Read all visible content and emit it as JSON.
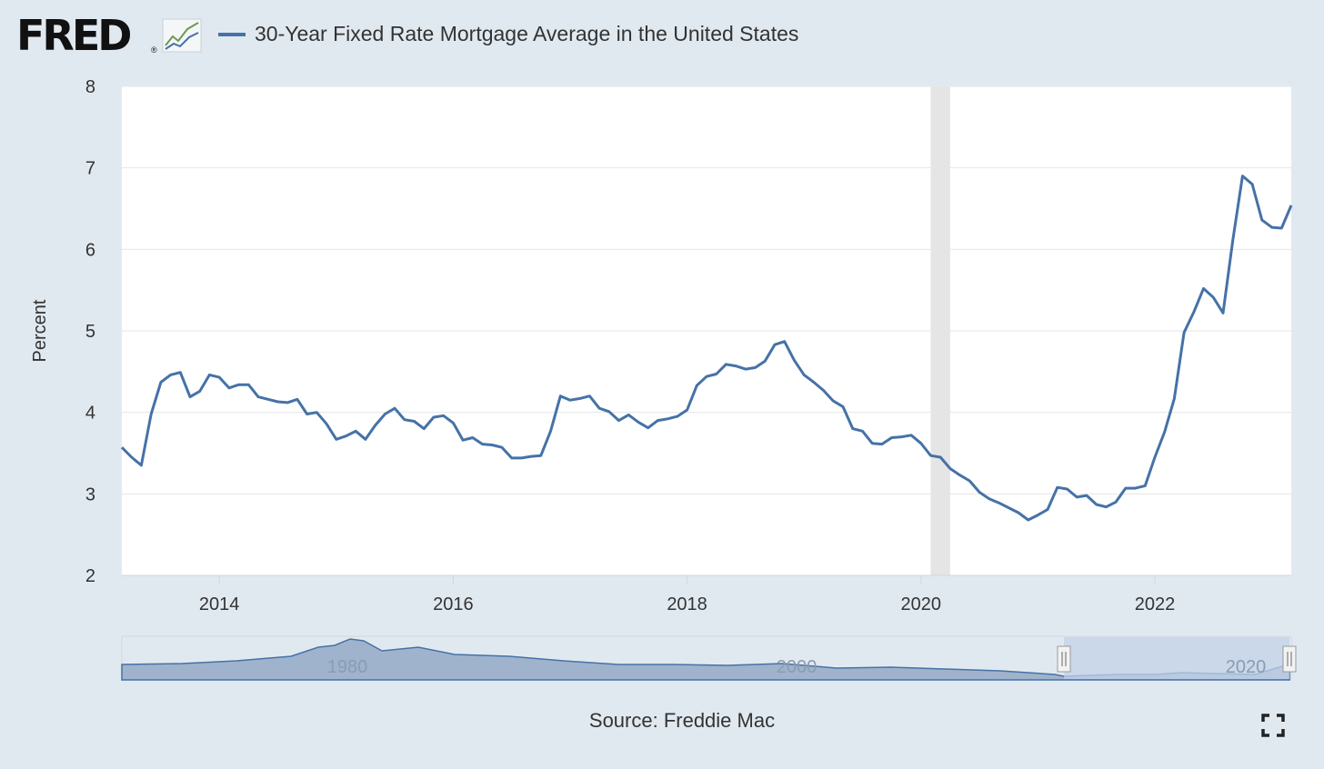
{
  "header": {
    "logo_text": "FRED",
    "logo_mark": "®",
    "title": "30-Year Fixed Rate Mortgage Average in the United States"
  },
  "source": "Source: Freddie Mac",
  "icons": {
    "logo_graph": "line-chart-icon",
    "fullscreen": "fullscreen-icon"
  },
  "colors": {
    "series": "#4572a7",
    "recession": "#e5e5e5",
    "navigator_fill": "#9fb3cc",
    "navigator_selection": "#c2d1e8",
    "background": "#e1e9f0",
    "plot_bg": "#ffffff",
    "grid": "#e6e6e6"
  },
  "chart_data": {
    "type": "line",
    "title": "30-Year Fixed Rate Mortgage Average in the United States",
    "ylabel": "Percent",
    "xlabel": "",
    "xlim": [
      "2013-03",
      "2023-03"
    ],
    "ylim": [
      2,
      8
    ],
    "y_ticks": [
      "2",
      "3",
      "4",
      "5",
      "6",
      "7",
      "8"
    ],
    "x_ticks": [
      "2014",
      "2016",
      "2018",
      "2020",
      "2022"
    ],
    "grid": true,
    "recession_band": [
      "2020-02",
      "2020-04"
    ],
    "series": [
      {
        "name": "30-Year Fixed Rate Mortgage Average in the United States",
        "x": [
          "2013-03",
          "2013-04",
          "2013-05",
          "2013-06",
          "2013-07",
          "2013-08",
          "2013-09",
          "2013-10",
          "2013-11",
          "2013-12",
          "2014-01",
          "2014-02",
          "2014-03",
          "2014-04",
          "2014-05",
          "2014-06",
          "2014-07",
          "2014-08",
          "2014-09",
          "2014-10",
          "2014-11",
          "2014-12",
          "2015-01",
          "2015-02",
          "2015-03",
          "2015-04",
          "2015-05",
          "2015-06",
          "2015-07",
          "2015-08",
          "2015-09",
          "2015-10",
          "2015-11",
          "2015-12",
          "2016-01",
          "2016-02",
          "2016-03",
          "2016-04",
          "2016-05",
          "2016-06",
          "2016-07",
          "2016-08",
          "2016-09",
          "2016-10",
          "2016-11",
          "2016-12",
          "2017-01",
          "2017-02",
          "2017-03",
          "2017-04",
          "2017-05",
          "2017-06",
          "2017-07",
          "2017-08",
          "2017-09",
          "2017-10",
          "2017-11",
          "2017-12",
          "2018-01",
          "2018-02",
          "2018-03",
          "2018-04",
          "2018-05",
          "2018-06",
          "2018-07",
          "2018-08",
          "2018-09",
          "2018-10",
          "2018-11",
          "2018-12",
          "2019-01",
          "2019-02",
          "2019-03",
          "2019-04",
          "2019-05",
          "2019-06",
          "2019-07",
          "2019-08",
          "2019-09",
          "2019-10",
          "2019-11",
          "2019-12",
          "2020-01",
          "2020-02",
          "2020-03",
          "2020-04",
          "2020-05",
          "2020-06",
          "2020-07",
          "2020-08",
          "2020-09",
          "2020-10",
          "2020-11",
          "2020-12",
          "2021-01",
          "2021-02",
          "2021-03",
          "2021-04",
          "2021-05",
          "2021-06",
          "2021-07",
          "2021-08",
          "2021-09",
          "2021-10",
          "2021-11",
          "2021-12",
          "2022-01",
          "2022-02",
          "2022-03",
          "2022-04",
          "2022-05",
          "2022-06",
          "2022-07",
          "2022-08",
          "2022-09",
          "2022-10",
          "2022-11",
          "2022-12",
          "2023-01",
          "2023-02",
          "2023-03"
        ],
        "values": [
          3.57,
          3.45,
          3.35,
          3.98,
          4.37,
          4.46,
          4.49,
          4.19,
          4.26,
          4.46,
          4.43,
          4.3,
          4.34,
          4.34,
          4.19,
          4.16,
          4.13,
          4.12,
          4.16,
          3.98,
          4.0,
          3.86,
          3.67,
          3.71,
          3.77,
          3.67,
          3.84,
          3.98,
          4.05,
          3.91,
          3.89,
          3.8,
          3.94,
          3.96,
          3.87,
          3.66,
          3.69,
          3.61,
          3.6,
          3.57,
          3.44,
          3.44,
          3.46,
          3.47,
          3.77,
          4.2,
          4.15,
          4.17,
          4.2,
          4.05,
          4.01,
          3.9,
          3.97,
          3.88,
          3.81,
          3.9,
          3.92,
          3.95,
          4.03,
          4.33,
          4.44,
          4.47,
          4.59,
          4.57,
          4.53,
          4.55,
          4.63,
          4.83,
          4.87,
          4.64,
          4.46,
          4.37,
          4.27,
          4.14,
          4.07,
          3.8,
          3.77,
          3.62,
          3.61,
          3.69,
          3.7,
          3.72,
          3.62,
          3.47,
          3.45,
          3.31,
          3.23,
          3.16,
          3.02,
          2.94,
          2.89,
          2.83,
          2.77,
          2.68,
          2.74,
          2.81,
          3.08,
          3.06,
          2.96,
          2.98,
          2.87,
          2.84,
          2.9,
          3.07,
          3.07,
          3.1,
          3.45,
          3.76,
          4.17,
          4.98,
          5.23,
          5.52,
          5.41,
          5.22,
          6.11,
          6.9,
          6.8,
          6.36,
          6.27,
          6.26,
          6.54
        ]
      }
    ]
  }
}
